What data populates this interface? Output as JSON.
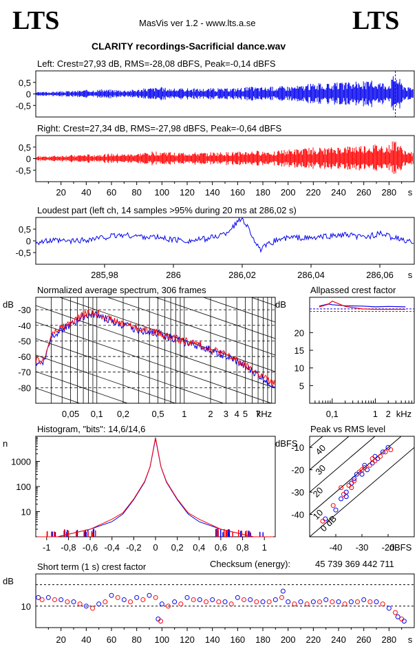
{
  "header": {
    "logo_left": "LTS",
    "logo_right": "LTS",
    "app_name": "MasVis ver 1.2 - www.lts.a.se",
    "file_title": "CLARITY recordings-Sacrificial dance.wav"
  },
  "checksum": {
    "label": "Checksum (energy):",
    "value": "45 739 369 442 711"
  },
  "colors": {
    "left": "#0000ee",
    "right": "#ff0000",
    "axis": "#000000"
  },
  "chart_data": [
    {
      "type": "area",
      "title": "Left: Crest=27,93 dB, RMS=-28,08 dBFS, Peak=-0,14 dBFS",
      "ylim": [
        -1,
        1
      ],
      "yticks": [
        "0,5",
        "0",
        "-0,5"
      ],
      "series": [
        {
          "name": "Left",
          "color": "#0000ee",
          "x": [
            0,
            10,
            20,
            30,
            40,
            50,
            60,
            70,
            80,
            90,
            100,
            110,
            120,
            130,
            140,
            150,
            160,
            170,
            180,
            190,
            200,
            210,
            220,
            230,
            240,
            250,
            260,
            270,
            280,
            285,
            290,
            295
          ],
          "values": [
            0.08,
            0.1,
            0.12,
            0.14,
            0.18,
            0.2,
            0.2,
            0.18,
            0.2,
            0.28,
            0.3,
            0.24,
            0.26,
            0.24,
            0.26,
            0.24,
            0.28,
            0.32,
            0.3,
            0.34,
            0.36,
            0.38,
            0.48,
            0.44,
            0.5,
            0.52,
            0.56,
            0.58,
            0.5,
            0.98,
            0.55,
            0.3
          ]
        }
      ]
    },
    {
      "type": "area",
      "title": "Right: Crest=27,34 dB, RMS=-27,98 dBFS, Peak=-0,64 dBFS",
      "ylim": [
        -1,
        1
      ],
      "yticks": [
        "0,5",
        "0",
        "-0,5"
      ],
      "xlabel": "s",
      "xticks": [
        "20",
        "40",
        "60",
        "80",
        "100",
        "120",
        "140",
        "160",
        "180",
        "200",
        "220",
        "240",
        "260",
        "280"
      ],
      "series": [
        {
          "name": "Right",
          "color": "#ff0000",
          "x": [
            0,
            10,
            20,
            30,
            40,
            50,
            60,
            70,
            80,
            90,
            100,
            110,
            120,
            130,
            140,
            150,
            160,
            170,
            180,
            190,
            200,
            210,
            220,
            230,
            240,
            250,
            260,
            270,
            280,
            285,
            290,
            295
          ],
          "values": [
            0.1,
            0.12,
            0.14,
            0.16,
            0.18,
            0.2,
            0.22,
            0.2,
            0.22,
            0.3,
            0.34,
            0.26,
            0.28,
            0.26,
            0.28,
            0.28,
            0.3,
            0.34,
            0.34,
            0.36,
            0.4,
            0.42,
            0.5,
            0.46,
            0.52,
            0.56,
            0.6,
            0.62,
            0.6,
            0.9,
            0.5,
            0.3
          ]
        }
      ]
    },
    {
      "type": "line",
      "title": "Loudest part (left  ch, 14 samples >95% during 20 ms at 286,02 s)",
      "xlim": [
        285.96,
        286.07
      ],
      "ylim": [
        -1,
        1
      ],
      "yticks": [
        "0,5",
        "0",
        "-0,5"
      ],
      "xticks": [
        "285,98",
        "286",
        "286,02",
        "286,04",
        "286,06"
      ],
      "xlabel": "s",
      "series": [
        {
          "name": "Left",
          "color": "#0000ee",
          "x": [
            285.96,
            285.965,
            285.97,
            285.975,
            285.98,
            285.985,
            285.99,
            285.995,
            286.0,
            286.005,
            286.01,
            286.015,
            286.02,
            286.022,
            286.025,
            286.03,
            286.035,
            286.04,
            286.045,
            286.05,
            286.055,
            286.06,
            286.065,
            286.07
          ],
          "values": [
            -0.05,
            0.0,
            -0.02,
            0.05,
            0.15,
            0.25,
            0.2,
            0.15,
            0.05,
            0.0,
            0.1,
            0.3,
            0.98,
            0.5,
            -0.4,
            0.05,
            0.15,
            0.1,
            0.2,
            0.25,
            0.15,
            0.3,
            0.1,
            -0.1
          ]
        }
      ]
    },
    {
      "type": "line",
      "title": "Normalized average spectrum, 306 frames",
      "ylabel": "dB",
      "xlabel": "kHz",
      "scale": "log",
      "yticks": [
        "-30",
        "-40",
        "-50",
        "-60",
        "-70",
        "-80"
      ],
      "xticks": [
        "0,05",
        "0,1",
        "0,2",
        "0,5",
        "1",
        "2",
        "3",
        "4",
        "5",
        "7"
      ],
      "series": [
        {
          "name": "Left",
          "color": "#0000ee",
          "x": [
            0.02,
            0.025,
            0.03,
            0.04,
            0.05,
            0.07,
            0.1,
            0.15,
            0.2,
            0.3,
            0.5,
            0.7,
            1,
            2,
            3,
            5,
            7,
            10
          ],
          "values": [
            -64,
            -63,
            -47,
            -42,
            -40,
            -34,
            -33,
            -38,
            -40,
            -43,
            -45,
            -48,
            -51,
            -56,
            -60,
            -67,
            -72,
            -78
          ]
        },
        {
          "name": "Right",
          "color": "#ff0000",
          "x": [
            0.02,
            0.025,
            0.03,
            0.04,
            0.05,
            0.07,
            0.1,
            0.15,
            0.2,
            0.3,
            0.5,
            0.7,
            1,
            2,
            3,
            5,
            7,
            10
          ],
          "values": [
            -63,
            -62,
            -46,
            -41,
            -39,
            -33,
            -32,
            -37,
            -39,
            -42,
            -45,
            -48,
            -50,
            -55,
            -59,
            -66,
            -71,
            -77
          ]
        }
      ]
    },
    {
      "type": "line",
      "title": "Allpassed crest factor",
      "ylabel": "dB",
      "xlabel": "kHz",
      "scale": "log",
      "yticks": [
        "20",
        "15",
        "10",
        "5"
      ],
      "xticks": [
        "0,1",
        "1",
        "2"
      ],
      "series": [
        {
          "name": "Left",
          "color": "#0000ee",
          "x": [
            0.05,
            0.08,
            0.1,
            0.2,
            0.5,
            1,
            2,
            5
          ],
          "values": [
            27.5,
            28.1,
            27.9,
            27.6,
            27.5,
            27.3,
            27.4,
            27.3
          ]
        },
        {
          "name": "Right",
          "color": "#ff0000",
          "x": [
            0.05,
            0.08,
            0.1,
            0.2,
            0.5,
            1,
            2,
            5
          ],
          "values": [
            27.3,
            28.0,
            28.9,
            27.4,
            26.7,
            26.6,
            26.6,
            26.6
          ]
        }
      ]
    },
    {
      "type": "line",
      "title": "Histogram, \"bits\": 14,6/14,6",
      "ylabel": "n",
      "scale": "log",
      "yticks": [
        "1000",
        "100",
        "10"
      ],
      "xticks": [
        "-1",
        "-0,8",
        "-0,6",
        "-0,4",
        "-0,2",
        "0",
        "0,2",
        "0,4",
        "0,6",
        "0,8",
        "1"
      ],
      "series": [
        {
          "name": "Left",
          "color": "#0000ee",
          "x": [
            -0.9,
            -0.6,
            -0.4,
            -0.3,
            -0.2,
            -0.1,
            -0.05,
            0,
            0.05,
            0.1,
            0.2,
            0.3,
            0.4,
            0.6,
            0.9
          ],
          "values": [
            1,
            2,
            4,
            8,
            30,
            150,
            600,
            8000,
            600,
            150,
            30,
            8,
            4,
            2,
            1
          ]
        },
        {
          "name": "Right",
          "color": "#ff0000",
          "x": [
            -0.9,
            -0.6,
            -0.4,
            -0.3,
            -0.2,
            -0.1,
            -0.05,
            0,
            0.05,
            0.1,
            0.2,
            0.3,
            0.4,
            0.6,
            0.9
          ],
          "values": [
            1,
            2,
            5,
            9,
            32,
            160,
            620,
            9000,
            620,
            160,
            32,
            9,
            5,
            2,
            1
          ]
        }
      ]
    },
    {
      "type": "scatter",
      "title": "Peak vs RMS level",
      "ylabel": "dBFS",
      "xlabel": "dBFS",
      "xlim": [
        -50,
        -10
      ],
      "ylim": [
        -50,
        -5
      ],
      "yticks": [
        "-10",
        "-20",
        "-30",
        "-40"
      ],
      "xticks": [
        "-40",
        "-30",
        "-20"
      ],
      "diagonal_labels": [
        "40",
        "30",
        "20",
        "10",
        "0 dB"
      ],
      "series": [
        {
          "name": "Left",
          "color": "#0000ee",
          "points": [
            [
              -44,
              -42
            ],
            [
              -40,
              -38
            ],
            [
              -38,
              -33
            ],
            [
              -36,
              -30
            ],
            [
              -34,
              -26
            ],
            [
              -32,
              -22
            ],
            [
              -30,
              -22
            ],
            [
              -28,
              -20
            ],
            [
              -26,
              -17
            ],
            [
              -24,
              -15
            ],
            [
              -22,
              -12
            ],
            [
              -20,
              -10
            ],
            [
              -33,
              -24
            ],
            [
              -29,
              -18
            ],
            [
              -25,
              -14
            ],
            [
              -36,
              -32
            ]
          ]
        },
        {
          "name": "Right",
          "color": "#ff0000",
          "points": [
            [
              -45,
              -43
            ],
            [
              -41,
              -36
            ],
            [
              -37,
              -31
            ],
            [
              -35,
              -27
            ],
            [
              -33,
              -25
            ],
            [
              -31,
              -21
            ],
            [
              -29,
              -19
            ],
            [
              -27,
              -18
            ],
            [
              -25,
              -16
            ],
            [
              -23,
              -14
            ],
            [
              -21,
              -12
            ],
            [
              -19,
              -11
            ],
            [
              -34,
              -28
            ],
            [
              -30,
              -20
            ],
            [
              -26,
              -15
            ],
            [
              -38,
              -28
            ]
          ]
        }
      ]
    },
    {
      "type": "scatter",
      "title": "Short term (1 s) crest factor",
      "ylabel": "dB",
      "xlabel": "s",
      "xlim": [
        0,
        300
      ],
      "ylim": [
        0,
        25
      ],
      "yticks": [
        "10"
      ],
      "xticks": [
        "20",
        "40",
        "60",
        "80",
        "100",
        "120",
        "140",
        "160",
        "180",
        "200",
        "220",
        "240",
        "260",
        "280"
      ],
      "series": [
        {
          "name": "Left",
          "color": "#0000ee",
          "x": [
            2,
            10,
            20,
            30,
            40,
            50,
            60,
            70,
            80,
            90,
            97,
            100,
            110,
            120,
            130,
            140,
            150,
            160,
            170,
            180,
            190,
            196,
            200,
            210,
            220,
            230,
            240,
            250,
            260,
            270,
            280,
            287,
            292
          ],
          "values": [
            14,
            14,
            13,
            12,
            10,
            11,
            15,
            13,
            14,
            15,
            4,
            11,
            12,
            14,
            13,
            13,
            12,
            14,
            13,
            12,
            13,
            17,
            12,
            12,
            12,
            13,
            12,
            12,
            13,
            12,
            9,
            5,
            3
          ]
        },
        {
          "name": "Right",
          "color": "#ff0000",
          "x": [
            5,
            15,
            25,
            35,
            45,
            55,
            65,
            75,
            85,
            95,
            99,
            105,
            115,
            125,
            135,
            145,
            155,
            165,
            175,
            185,
            195,
            205,
            215,
            225,
            235,
            245,
            255,
            265,
            275,
            285,
            290
          ],
          "values": [
            13,
            13,
            12,
            11,
            9,
            12,
            14,
            12,
            13,
            14,
            3,
            10,
            11,
            13,
            12,
            12,
            11,
            13,
            12,
            12,
            14,
            11,
            11,
            12,
            12,
            11,
            12,
            12,
            11,
            7,
            4
          ]
        }
      ]
    }
  ]
}
